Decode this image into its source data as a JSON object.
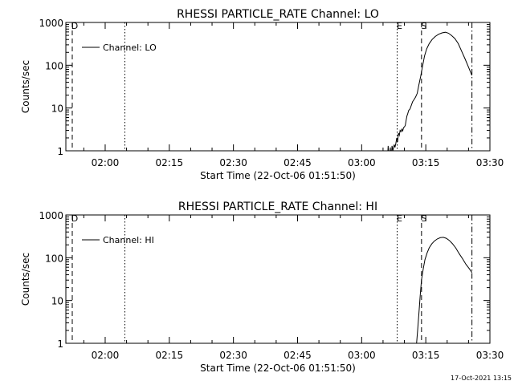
{
  "footer_timestamp": "17-Oct-2021 13:15",
  "chart_data": [
    {
      "type": "line",
      "title": "RHESSI PARTICLE_RATE Channel: LO",
      "xlabel": "Start Time (22-Oct-06 01:51:50)",
      "ylabel": "Counts/sec",
      "yscale": "log",
      "ylim": [
        1,
        1000
      ],
      "xlim_minutes": [
        110.8,
        210.0
      ],
      "x_ticks": [
        {
          "m": 120,
          "label": "02:00"
        },
        {
          "m": 135,
          "label": "02:15"
        },
        {
          "m": 150,
          "label": "02:30"
        },
        {
          "m": 165,
          "label": "02:45"
        },
        {
          "m": 180,
          "label": "03:00"
        },
        {
          "m": 195,
          "label": "03:15"
        },
        {
          "m": 210,
          "label": "03:30"
        }
      ],
      "y_ticks": [
        {
          "v": 1,
          "label": "1"
        },
        {
          "v": 10,
          "label": "10"
        },
        {
          "v": 100,
          "label": "100"
        },
        {
          "v": 1000,
          "label": "1000"
        }
      ],
      "legend": "top-left",
      "series": [
        {
          "name": "Channel: LO",
          "points": [
            [
              186.0,
              0.6
            ],
            [
              186.2,
              1.3
            ],
            [
              186.4,
              0.6
            ],
            [
              186.7,
              1.2
            ],
            [
              186.9,
              0.6
            ],
            [
              187.1,
              1.3
            ],
            [
              187.3,
              1.0
            ],
            [
              187.6,
              1.4
            ],
            [
              187.8,
              1.2
            ],
            [
              188.0,
              1.5
            ],
            [
              188.2,
              2.0
            ],
            [
              188.4,
              1.6
            ],
            [
              188.6,
              2.6
            ],
            [
              188.8,
              2.3
            ],
            [
              189.0,
              3.0
            ],
            [
              189.2,
              2.8
            ],
            [
              189.4,
              3.2
            ],
            [
              189.6,
              2.9
            ],
            [
              189.8,
              3.5
            ],
            [
              190.0,
              3.6
            ],
            [
              190.2,
              3.9
            ],
            [
              190.4,
              5.2
            ],
            [
              190.6,
              6.5
            ],
            [
              190.8,
              7.5
            ],
            [
              191.0,
              8.8
            ],
            [
              191.3,
              9.5
            ],
            [
              191.6,
              11.5
            ],
            [
              191.9,
              14
            ],
            [
              192.2,
              15.5
            ],
            [
              192.6,
              18
            ],
            [
              193.0,
              22
            ],
            [
              193.4,
              35
            ],
            [
              193.8,
              55
            ],
            [
              194.2,
              90
            ],
            [
              194.7,
              165
            ],
            [
              195.2,
              240
            ],
            [
              195.8,
              320
            ],
            [
              196.5,
              400
            ],
            [
              197.2,
              470
            ],
            [
              198.0,
              530
            ],
            [
              198.8,
              570
            ],
            [
              199.6,
              590
            ],
            [
              200.3,
              560
            ],
            [
              201.0,
              500
            ],
            [
              201.8,
              420
            ],
            [
              202.6,
              320
            ],
            [
              203.4,
              210
            ],
            [
              204.2,
              140
            ],
            [
              205.0,
              90
            ],
            [
              205.8,
              58
            ]
          ]
        }
      ],
      "markers": [
        {
          "label": "D",
          "m": 112.3,
          "style": "dashed"
        },
        {
          "label": "",
          "m": 124.6,
          "style": "dotted"
        },
        {
          "label": "E",
          "m": 188.3,
          "style": "dotted"
        },
        {
          "label": "S",
          "m": 194.0,
          "style": "dashed"
        },
        {
          "label": "",
          "m": 205.8,
          "style": "dashdot"
        }
      ]
    },
    {
      "type": "line",
      "title": "RHESSI PARTICLE_RATE Channel: HI",
      "xlabel": "Start Time (22-Oct-06 01:51:50)",
      "ylabel": "Counts/sec",
      "yscale": "log",
      "ylim": [
        1,
        1000
      ],
      "xlim_minutes": [
        110.8,
        210.0
      ],
      "x_ticks": [
        {
          "m": 120,
          "label": "02:00"
        },
        {
          "m": 135,
          "label": "02:15"
        },
        {
          "m": 150,
          "label": "02:30"
        },
        {
          "m": 165,
          "label": "02:45"
        },
        {
          "m": 180,
          "label": "03:00"
        },
        {
          "m": 195,
          "label": "03:15"
        },
        {
          "m": 210,
          "label": "03:30"
        }
      ],
      "y_ticks": [
        {
          "v": 1,
          "label": "1"
        },
        {
          "v": 10,
          "label": "10"
        },
        {
          "v": 100,
          "label": "100"
        },
        {
          "v": 1000,
          "label": "1000"
        }
      ],
      "legend": "top-left",
      "series": [
        {
          "name": "Channel: HI",
          "points": [
            [
              192.8,
              0.9
            ],
            [
              193.1,
              2.0
            ],
            [
              193.4,
              5.0
            ],
            [
              193.7,
              13
            ],
            [
              194.0,
              30
            ],
            [
              194.4,
              55
            ],
            [
              194.8,
              90
            ],
            [
              195.3,
              130
            ],
            [
              195.8,
              170
            ],
            [
              196.4,
              210
            ],
            [
              197.0,
              245
            ],
            [
              197.7,
              275
            ],
            [
              198.4,
              295
            ],
            [
              199.1,
              300
            ],
            [
              199.8,
              285
            ],
            [
              200.5,
              255
            ],
            [
              201.2,
              215
            ],
            [
              202.0,
              170
            ],
            [
              202.8,
              125
            ],
            [
              203.6,
              95
            ],
            [
              204.4,
              70
            ],
            [
              205.2,
              55
            ],
            [
              205.8,
              45
            ]
          ]
        }
      ],
      "markers": [
        {
          "label": "D",
          "m": 112.3,
          "style": "dashed"
        },
        {
          "label": "",
          "m": 124.6,
          "style": "dotted"
        },
        {
          "label": "E",
          "m": 188.3,
          "style": "dotted"
        },
        {
          "label": "S",
          "m": 194.0,
          "style": "dashed"
        },
        {
          "label": "",
          "m": 205.8,
          "style": "dashdot"
        }
      ]
    }
  ]
}
